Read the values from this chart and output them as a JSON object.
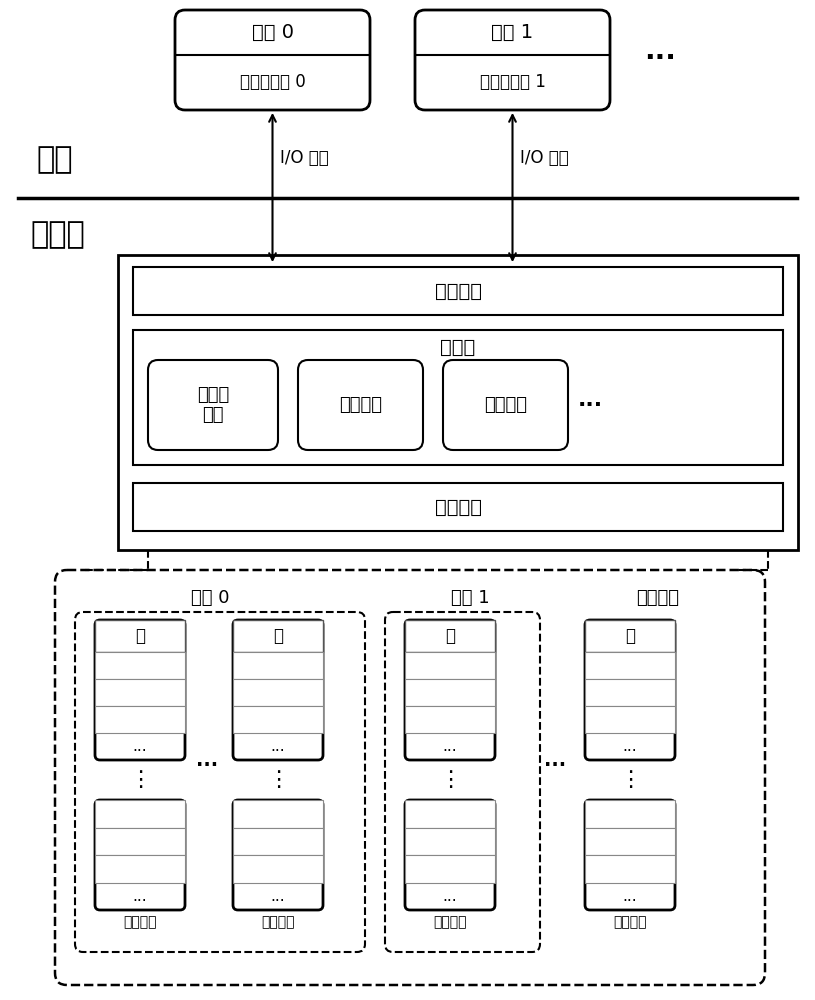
{
  "bg_color": "#ffffff",
  "title_host": "主机",
  "title_ssd": "固态盘",
  "label_host_interface": "主机接口",
  "label_controller": "控制器",
  "label_flash_storage": "闪存存储",
  "label_multi_tenant": "多租户\n管理",
  "label_address_map": "地址映射",
  "label_gc": "垃圾回收",
  "label_tenant0": "租户 0",
  "label_vdisk0": "虚拟固态盘 0",
  "label_tenant1": "租户 1",
  "label_vdisk1": "虚拟固态盘 1",
  "label_io_req": "I/O 请求",
  "label_dots_horiz": "···",
  "label_dots_vert": "⋮",
  "label_dots_between": "···",
  "label_tenant0_bottom": "租户 0",
  "label_tenant1_bottom": "租户 1",
  "label_other_tenants": "其它租户",
  "label_flash_die": "闪存晶圆",
  "label_page": "页",
  "label_ellipsis": "...",
  "label_three_dots": "···"
}
